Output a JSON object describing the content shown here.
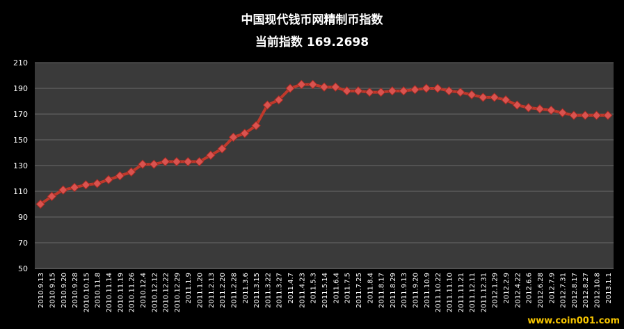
{
  "chart_data": {
    "type": "line",
    "title": "中国现代钱币网精制币指数",
    "subtitle_label": "当前指数",
    "subtitle_value": "169.2698",
    "ylim": [
      50,
      210
    ],
    "yticks": [
      50,
      70,
      90,
      110,
      130,
      150,
      170,
      190,
      210
    ],
    "grid": true,
    "colors": {
      "plot_bg": "#3a3a3a",
      "line": "#c0392b",
      "marker": "#d9534f",
      "grid": "#6a6a6a",
      "text": "#ffffff"
    },
    "x_tick_labels": [
      "2010.9.13",
      "2010.9.15",
      "2010.9.20",
      "2010.9.28",
      "2010.10.15",
      "2010.11.8",
      "2010.11.14",
      "2010.11.19",
      "2010.11.26",
      "2010.12.4",
      "2010.12.12",
      "2010.12.22",
      "2010.12.29",
      "2011.1.9",
      "2011.1.20",
      "2011.2.13",
      "2011.2.20",
      "2011.2.28",
      "2011.3.6",
      "2011.3.15",
      "2011.3.22",
      "2011.3.27",
      "2011.4.7",
      "2011.4.23",
      "2011.5.3",
      "2011.5.14",
      "2011.6.4",
      "2011.7.5",
      "2011.7.25",
      "2011.8.4",
      "2011.8.17",
      "2011.8.29",
      "2011.9.13",
      "2011.9.20",
      "2011.10.9",
      "2011.10.22",
      "2011.11.10",
      "2011.11.21",
      "2011.12.11",
      "2011.12.31",
      "2012.1.29",
      "2012.2.9",
      "2012.4.22",
      "2012.6.6",
      "2012.6.28",
      "2012.7.9",
      "2012.7.31",
      "2012.8.17",
      "2012.8.27",
      "2012.10.8",
      "2013.1.1"
    ],
    "series": [
      {
        "values": [
          100,
          106,
          111,
          113,
          115,
          116,
          119,
          122,
          125,
          131,
          131,
          133,
          133,
          133,
          133,
          138,
          143,
          152,
          155,
          161,
          177,
          181,
          190,
          193,
          193,
          191,
          191,
          188,
          188,
          187,
          187,
          188,
          188,
          189,
          190,
          190,
          188,
          187,
          185,
          183,
          183,
          181,
          177,
          175,
          174,
          173,
          171,
          169,
          169,
          169,
          169
        ]
      }
    ]
  },
  "watermark": "www.coin001.com"
}
